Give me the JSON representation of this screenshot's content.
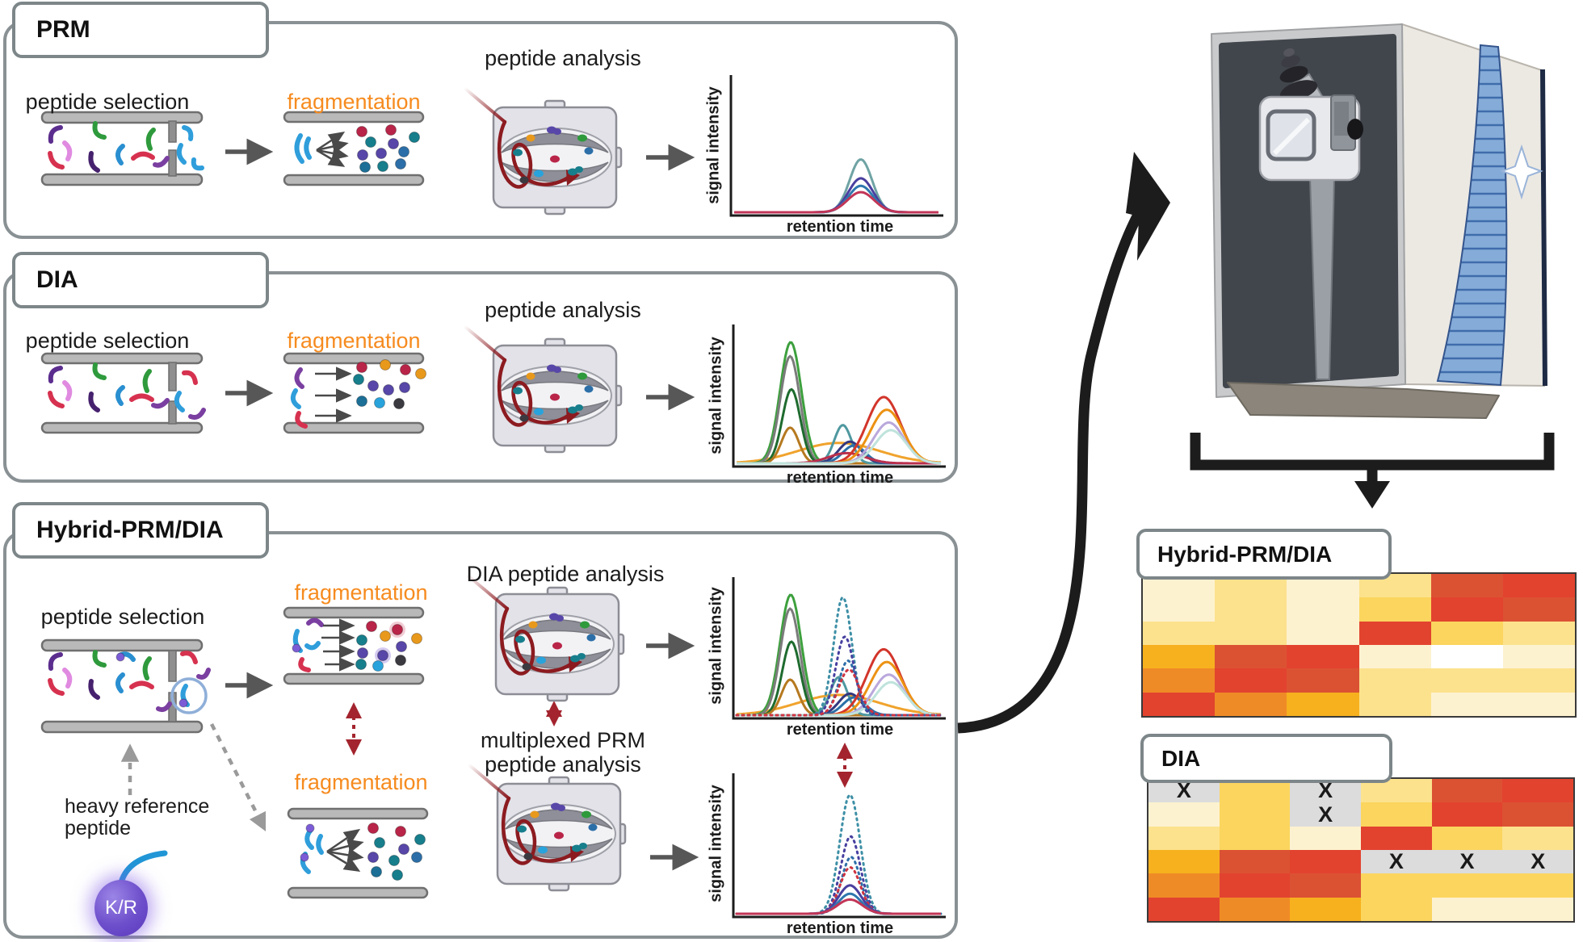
{
  "panels": {
    "prm": {
      "title": "PRM",
      "selection_label": "peptide selection",
      "fragmentation_label": "fragmentation",
      "analysis_label": "peptide analysis"
    },
    "dia": {
      "title": "DIA",
      "selection_label": "peptide selection",
      "fragmentation_label": "fragmentation",
      "analysis_label": "peptide analysis"
    },
    "hybrid": {
      "title": "Hybrid-PRM/DIA",
      "selection_label": "peptide selection",
      "fragmentation_top_label": "fragmentation",
      "fragmentation_bottom_label": "fragmentation",
      "analysis_top_label": "DIA peptide analysis",
      "analysis_bottom_label": "multiplexed PRM peptide analysis",
      "heavy_reference_label": "heavy reference peptide",
      "heavy_tag": "K/R"
    }
  },
  "axes": {
    "x_label": "retention time",
    "y_label": "signal intensity"
  },
  "charts": {
    "prm": {
      "type": "line",
      "x_axis": "retention time",
      "y_axis": "signal intensity",
      "series": [
        {
          "name": "teal",
          "color": "#6fa3a4",
          "x": 0.62,
          "h": 0.42,
          "s": 0.055
        },
        {
          "name": "indigo",
          "color": "#4a3f9f",
          "x": 0.62,
          "h": 0.27,
          "s": 0.06
        },
        {
          "name": "blue",
          "color": "#2e77ae",
          "x": 0.62,
          "h": 0.21,
          "s": 0.06
        },
        {
          "name": "crimson",
          "color": "#c23557",
          "x": 0.62,
          "h": 0.16,
          "s": 0.065
        }
      ]
    },
    "dia": {
      "type": "line",
      "x_axis": "retention time",
      "y_axis": "signal intensity",
      "series": [
        {
          "name": "broad-orange",
          "color": "#f0a32c",
          "x": 0.5,
          "h": 0.16,
          "s": 0.2
        },
        {
          "name": "green",
          "color": "#3da03d",
          "x": 0.265,
          "h": 0.95,
          "s": 0.052
        },
        {
          "name": "gray",
          "color": "#7b7b7b",
          "x": 0.262,
          "h": 0.84,
          "s": 0.048
        },
        {
          "name": "dark-green",
          "color": "#1e6b2e",
          "x": 0.268,
          "h": 0.58,
          "s": 0.044
        },
        {
          "name": "brown",
          "color": "#b5791f",
          "x": 0.262,
          "h": 0.28,
          "s": 0.042
        },
        {
          "name": "teal",
          "color": "#4f98a0",
          "x": 0.52,
          "h": 0.3,
          "s": 0.042
        },
        {
          "name": "navy",
          "color": "#34387f",
          "x": 0.555,
          "h": 0.17,
          "s": 0.055
        },
        {
          "name": "blue",
          "color": "#2c6fa8",
          "x": 0.575,
          "h": 0.14,
          "s": 0.055
        },
        {
          "name": "crimson-low",
          "color": "#b92f4d",
          "x": 0.54,
          "h": 0.08,
          "s": 0.09
        },
        {
          "name": "red",
          "color": "#d2352b",
          "x": 0.72,
          "h": 0.52,
          "s": 0.082
        },
        {
          "name": "orange",
          "color": "#ec9213",
          "x": 0.735,
          "h": 0.42,
          "s": 0.08
        },
        {
          "name": "lavender",
          "color": "#b9a8dc",
          "x": 0.745,
          "h": 0.32,
          "s": 0.075
        },
        {
          "name": "pale-cyan",
          "color": "#bfe3dc",
          "x": 0.755,
          "h": 0.26,
          "s": 0.075
        }
      ]
    },
    "hybrid_dia": {
      "type": "line",
      "x_axis": "retention time",
      "y_axis": "signal intensity",
      "series": [
        {
          "name": "broad-orange",
          "color": "#f0a32c",
          "x": 0.5,
          "h": 0.16,
          "s": 0.2
        },
        {
          "name": "green",
          "color": "#3da03d",
          "x": 0.265,
          "h": 0.95,
          "s": 0.052
        },
        {
          "name": "gray",
          "color": "#7b7b7b",
          "x": 0.262,
          "h": 0.84,
          "s": 0.048
        },
        {
          "name": "dark-green",
          "color": "#1e6b2e",
          "x": 0.268,
          "h": 0.58,
          "s": 0.044
        },
        {
          "name": "brown",
          "color": "#b5791f",
          "x": 0.262,
          "h": 0.28,
          "s": 0.042
        },
        {
          "name": "teal",
          "color": "#4f98a0",
          "x": 0.5,
          "h": 0.3,
          "s": 0.042
        },
        {
          "name": "navy",
          "color": "#34387f",
          "x": 0.555,
          "h": 0.17,
          "s": 0.055
        },
        {
          "name": "blue",
          "color": "#2c6fa8",
          "x": 0.575,
          "h": 0.14,
          "s": 0.055
        },
        {
          "name": "red",
          "color": "#d2352b",
          "x": 0.72,
          "h": 0.52,
          "s": 0.082
        },
        {
          "name": "orange",
          "color": "#ec9213",
          "x": 0.735,
          "h": 0.42,
          "s": 0.08
        },
        {
          "name": "lavender",
          "color": "#b9a8dc",
          "x": 0.745,
          "h": 0.32,
          "s": 0.075
        },
        {
          "name": "pale-cyan",
          "color": "#bfe3dc",
          "x": 0.755,
          "h": 0.26,
          "s": 0.075
        },
        {
          "name": "spiked-teal",
          "color": "#3d8fa6",
          "x": 0.52,
          "h": 0.93,
          "s": 0.045,
          "dash": true
        },
        {
          "name": "spiked-indigo",
          "color": "#4740a0",
          "x": 0.53,
          "h": 0.62,
          "s": 0.045,
          "dash": true
        },
        {
          "name": "spiked-blue",
          "color": "#2e6fa8",
          "x": 0.545,
          "h": 0.43,
          "s": 0.045,
          "dash": true
        },
        {
          "name": "spiked-red",
          "color": "#cf3340",
          "x": 0.55,
          "h": 0.36,
          "s": 0.05,
          "dash": true
        }
      ]
    },
    "hybrid_prm": {
      "type": "line",
      "x_axis": "retention time",
      "y_axis": "signal intensity",
      "series": [
        {
          "name": "spiked-teal",
          "color": "#3d8fa6",
          "x": 0.555,
          "h": 0.92,
          "s": 0.05,
          "dash": true
        },
        {
          "name": "spiked-indigo",
          "color": "#4740a0",
          "x": 0.558,
          "h": 0.6,
          "s": 0.048,
          "dash": true
        },
        {
          "name": "spiked-blue",
          "color": "#2e6fa8",
          "x": 0.56,
          "h": 0.44,
          "s": 0.046,
          "dash": true
        },
        {
          "name": "spiked-red",
          "color": "#cf3340",
          "x": 0.556,
          "h": 0.36,
          "s": 0.05,
          "dash": true
        },
        {
          "name": "indigo",
          "color": "#4a3f9f",
          "x": 0.555,
          "h": 0.22,
          "s": 0.055
        },
        {
          "name": "blue",
          "color": "#2e77ae",
          "x": 0.555,
          "h": 0.155,
          "s": 0.055
        },
        {
          "name": "crimson",
          "color": "#c23557",
          "x": 0.555,
          "h": 0.11,
          "s": 0.06
        }
      ]
    }
  },
  "heatmaps": {
    "hybrid": {
      "title": "Hybrid-PRM/DIA",
      "mark_char": "X",
      "marks": [],
      "grid": [
        [
          "c",
          "y",
          "c",
          "y",
          "R",
          "r"
        ],
        [
          "c",
          "y",
          "c",
          "g",
          "r",
          "R"
        ],
        [
          "y",
          "y",
          "c",
          "r",
          "g",
          "y"
        ],
        [
          "a",
          "R",
          "r",
          "c",
          "w",
          "c"
        ],
        [
          "o",
          "r",
          "R",
          "y",
          "y",
          "y"
        ],
        [
          "r",
          "o",
          "a",
          "y",
          "c",
          "c"
        ]
      ]
    },
    "dia": {
      "title": "DIA",
      "mark_char": "X",
      "marks": [
        [
          0,
          0
        ],
        [
          0,
          2
        ],
        [
          1,
          2
        ],
        [
          3,
          3
        ],
        [
          3,
          4
        ],
        [
          3,
          5
        ]
      ],
      "grid": [
        [
          "x",
          "g",
          "x",
          "y",
          "R",
          "r"
        ],
        [
          "c",
          "g",
          "x",
          "g",
          "r",
          "R"
        ],
        [
          "y",
          "g",
          "c",
          "r",
          "g",
          "y"
        ],
        [
          "a",
          "R",
          "r",
          "x",
          "x",
          "x"
        ],
        [
          "o",
          "r",
          "R",
          "g",
          "g",
          "g"
        ],
        [
          "r",
          "o",
          "a",
          "g",
          "c",
          "c"
        ]
      ]
    }
  },
  "palette": {
    "w": "#ffffff",
    "c": "#fdf2d0",
    "y": "#fce28d",
    "g": "#fbd55e",
    "a": "#f7b11e",
    "o": "#ef8b26",
    "r": "#e2432f",
    "R": "#db5233",
    "x": "#dcdcdc"
  }
}
